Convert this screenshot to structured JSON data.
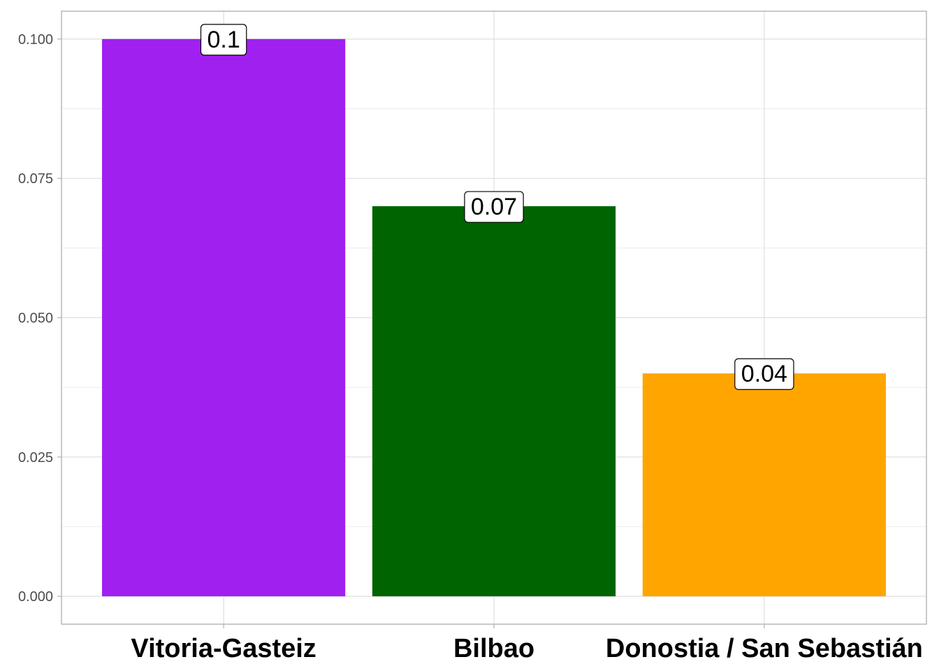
{
  "chart_data": {
    "type": "bar",
    "categories": [
      "Vitoria-Gasteiz",
      "Bilbao",
      "Donostia / San Sebastián"
    ],
    "values": [
      0.1,
      0.07,
      0.04
    ],
    "data_labels": [
      "0.1",
      "0.07",
      "0.04"
    ],
    "colors": [
      "#a020f0",
      "#006400",
      "#ffa500"
    ],
    "title": "",
    "xlabel": "",
    "ylabel": "",
    "ylim": [
      -0.005,
      0.105
    ],
    "yticks": [
      0,
      0.025,
      0.05,
      0.075,
      0.1
    ],
    "ytick_labels": [
      "0.000",
      "0.025",
      "0.050",
      "0.075",
      "0.100"
    ],
    "grid": true,
    "legend": "none",
    "theme": "light"
  }
}
